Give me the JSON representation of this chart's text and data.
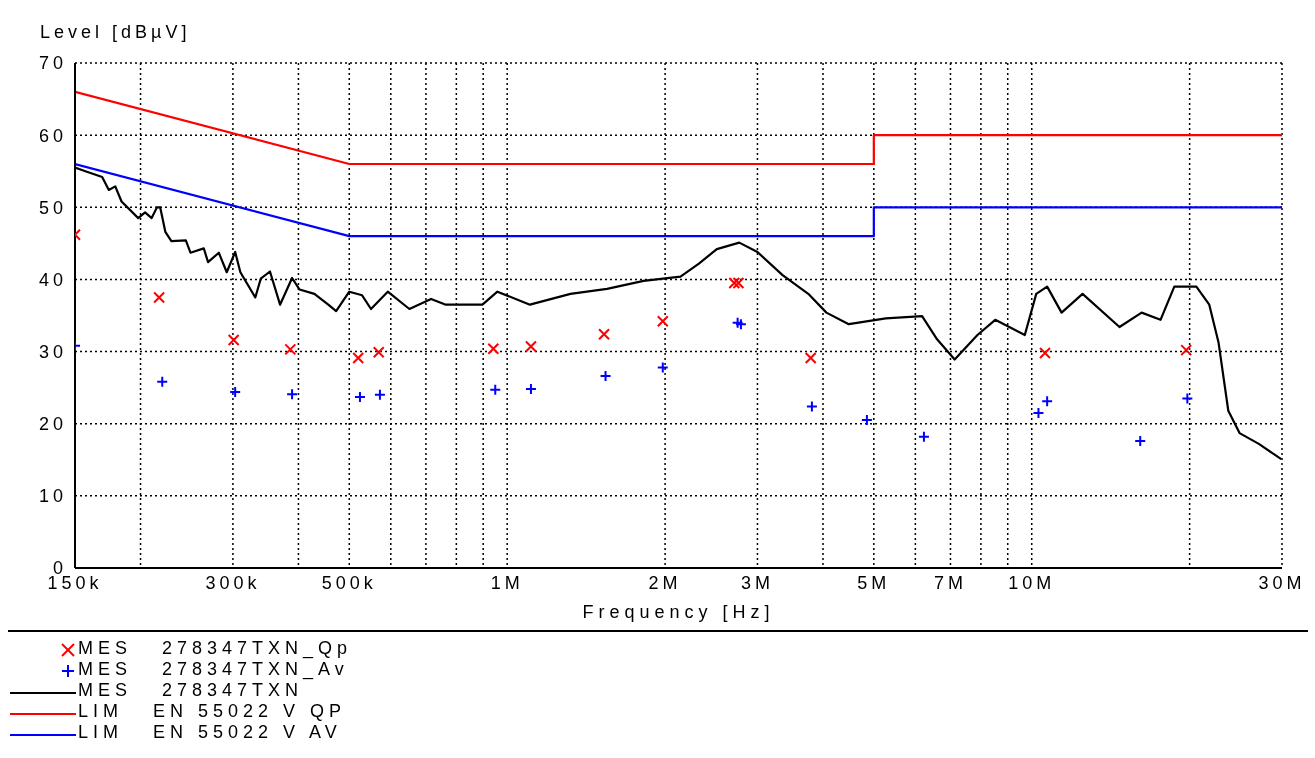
{
  "chart_data": {
    "type": "line",
    "xlabel": "Frequency [Hz]",
    "ylabel": "Level [dBµV]",
    "log": "x",
    "grid": true,
    "legend": "bottom",
    "xlim": [
      150000,
      30000000
    ],
    "ylim": [
      0,
      70
    ],
    "yticks": [
      0,
      10,
      20,
      30,
      40,
      50,
      60,
      70
    ],
    "xticks": [
      {
        "value": 150000,
        "label": "150k"
      },
      {
        "value": 200000,
        "label": null
      },
      {
        "value": 300000,
        "label": "300k"
      },
      {
        "value": 400000,
        "label": null
      },
      {
        "value": 500000,
        "label": "500k"
      },
      {
        "value": 600000,
        "label": null
      },
      {
        "value": 700000,
        "label": null
      },
      {
        "value": 800000,
        "label": null
      },
      {
        "value": 900000,
        "label": null
      },
      {
        "value": 1000000,
        "label": "1M"
      },
      {
        "value": 2000000,
        "label": "2M"
      },
      {
        "value": 3000000,
        "label": "3M"
      },
      {
        "value": 4000000,
        "label": null
      },
      {
        "value": 5000000,
        "label": "5M"
      },
      {
        "value": 6000000,
        "label": null
      },
      {
        "value": 7000000,
        "label": "7M"
      },
      {
        "value": 8000000,
        "label": null
      },
      {
        "value": 9000000,
        "label": null
      },
      {
        "value": 10000000,
        "label": "10M"
      },
      {
        "value": 20000000,
        "label": null
      },
      {
        "value": 30000000,
        "label": "30M"
      }
    ],
    "series": [
      {
        "name": "MES   278347TXN_Qp",
        "type": "scatter",
        "marker": "cross",
        "color": "#ff0000",
        "x": [
          150000,
          217000,
          301000,
          386000,
          520000,
          569000,
          941000,
          1110000,
          1530000,
          1980000,
          2710000,
          2760000,
          3790000,
          10600000,
          19700000
        ],
        "values": [
          46.2,
          37.5,
          31.6,
          30.3,
          29.1,
          29.9,
          30.4,
          30.7,
          32.4,
          34.2,
          39.5,
          39.5,
          29.1,
          29.8,
          30.2
        ]
      },
      {
        "name": "MES   278347TXN_Av",
        "type": "scatter",
        "marker": "plus",
        "color": "#0000ff",
        "x": [
          150000,
          220000,
          303000,
          389000,
          524000,
          572000,
          949000,
          1110000,
          1540000,
          1980000,
          2750000,
          2790000,
          3810000,
          4850000,
          6230000,
          10300000,
          10700000,
          16100000,
          19800000
        ],
        "values": [
          30.8,
          25.8,
          24.4,
          24.1,
          23.7,
          24.0,
          24.7,
          24.8,
          26.6,
          27.8,
          34.0,
          33.8,
          22.4,
          20.5,
          18.2,
          21.5,
          23.1,
          17.6,
          23.5
        ]
      },
      {
        "name": "MES   278347TXN",
        "color": "#000000",
        "x": [
          150000,
          157000,
          169000,
          174000,
          179000,
          184000,
          198000,
          204000,
          210000,
          215000,
          218000,
          223000,
          229000,
          244000,
          249000,
          264000,
          269000,
          282000,
          292000,
          303000,
          310000,
          331000,
          339000,
          353000,
          369000,
          389000,
          402000,
          429000,
          456000,
          472000,
          500000,
          529000,
          550000,
          592000,
          651000,
          716000,
          764000,
          897000,
          958000,
          1105000,
          1320000,
          1550000,
          1820000,
          2140000,
          2320000,
          2510000,
          2770000,
          3000000,
          3350000,
          3750000,
          4060000,
          4480000,
          5270000,
          6180000,
          6600000,
          7130000,
          7880000,
          8520000,
          9700000,
          10200000,
          10700000,
          11400000,
          12500000,
          14700000,
          16200000,
          17600000,
          18700000,
          20600000,
          21800000,
          22700000,
          23700000,
          24900000,
          27100000,
          29900000
        ],
        "values": [
          55.5,
          55.0,
          54.2,
          52.4,
          52.9,
          50.8,
          48.5,
          49.3,
          48.5,
          50.0,
          50.0,
          46.6,
          45.3,
          45.4,
          43.7,
          44.3,
          42.4,
          43.7,
          41.0,
          43.8,
          41.0,
          37.5,
          40.1,
          41.1,
          36.5,
          40.2,
          38.6,
          38.0,
          36.5,
          35.6,
          38.3,
          37.8,
          35.9,
          38.3,
          35.9,
          37.3,
          36.5,
          36.5,
          38.3,
          36.5,
          38.0,
          38.7,
          39.8,
          40.4,
          42.2,
          44.2,
          45.1,
          43.8,
          40.6,
          38.0,
          35.4,
          33.8,
          34.6,
          34.9,
          31.7,
          28.9,
          32.3,
          34.4,
          32.3,
          38.0,
          39.0,
          35.4,
          38.0,
          33.4,
          35.4,
          34.4,
          39.0,
          39.0,
          36.5,
          31.3,
          21.8,
          18.7,
          17.2,
          15.1
        ]
      },
      {
        "name": "LIM   EN 55022 V QP",
        "color": "#ff0000",
        "x": [
          150000,
          500000,
          5000000,
          5000000,
          30000000
        ],
        "values": [
          66,
          56,
          56,
          60,
          60
        ]
      },
      {
        "name": "LIM   EN 55022 V AV",
        "color": "#0000ff",
        "x": [
          150000,
          500000,
          5000000,
          5000000,
          30000000
        ],
        "values": [
          56,
          46,
          46,
          50,
          50
        ]
      }
    ]
  }
}
